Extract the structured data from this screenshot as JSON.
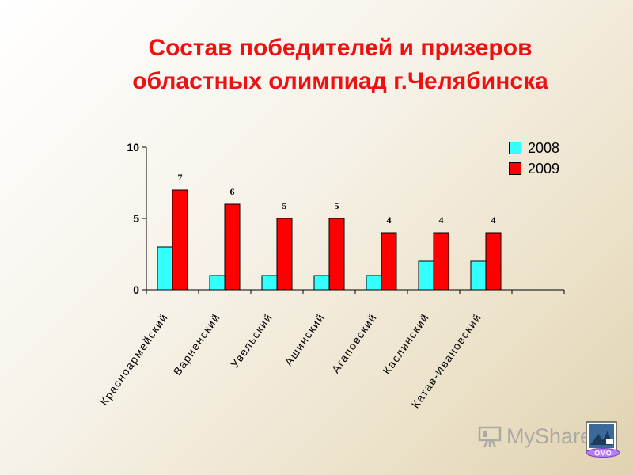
{
  "title_line1": "Состав победителей и призеров",
  "title_line2": "областных олимпиад г.Челябинска",
  "chart_data": {
    "type": "bar",
    "categories": [
      "Красноармейский",
      "Варненский",
      "Увельский",
      "Ашинский",
      "Агаповский",
      "Каслинский",
      "Катав-Ивановский"
    ],
    "series": [
      {
        "name": "2008",
        "values": [
          3,
          1,
          1,
          1,
          1,
          2,
          2
        ],
        "color": "#33ffff"
      },
      {
        "name": "2009",
        "values": [
          7,
          6,
          5,
          5,
          4,
          4,
          4
        ],
        "color": "#ff0000"
      }
    ],
    "data_labels_2009": [
      "7",
      "6",
      "5",
      "5",
      "4",
      "4",
      "4"
    ],
    "yticks": [
      "0",
      "5",
      "10"
    ],
    "ylim": [
      0,
      10
    ],
    "legend_position": "top-right",
    "grid": false
  },
  "watermark": {
    "text": "MyShared",
    "color": "#9a9a9a"
  },
  "logo": {
    "text": "ОМО"
  }
}
